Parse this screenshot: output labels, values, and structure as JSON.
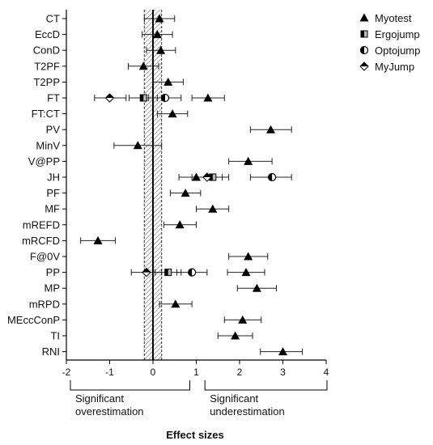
{
  "chart_data": {
    "type": "scatter",
    "subtype": "forest-plot",
    "xlabel": "Effect sizes",
    "xlim": [
      -2,
      4
    ],
    "xticks": [
      -2,
      -1,
      0,
      1,
      2,
      3,
      4
    ],
    "reference_line": 0,
    "equivalence_band": [
      -0.2,
      0.2
    ],
    "categories": [
      "CT",
      "EccD",
      "ConD",
      "T2PF",
      "T2PP",
      "FT",
      "FT:CT",
      "PV",
      "MinV",
      "V@PP",
      "JH",
      "PF",
      "MF",
      "mREFD",
      "mRCFD",
      "F@0V",
      "PP",
      "MP",
      "mRPD",
      "MEccConP",
      "TI",
      "RNI"
    ],
    "annotations": {
      "left": [
        "Significant",
        "overestimation"
      ],
      "right": [
        "Significant",
        "underestimation"
      ]
    },
    "series": [
      {
        "name": "Myotest",
        "marker": "triangle",
        "points": [
          {
            "category": "CT",
            "x": 0.15,
            "lo": -0.2,
            "hi": 0.5
          },
          {
            "category": "EccD",
            "x": 0.1,
            "lo": -0.25,
            "hi": 0.45
          },
          {
            "category": "ConD",
            "x": 0.18,
            "lo": -0.15,
            "hi": 0.52
          },
          {
            "category": "T2PF",
            "x": -0.22,
            "lo": -0.57,
            "hi": 0.13
          },
          {
            "category": "T2PP",
            "x": 0.35,
            "lo": 0.0,
            "hi": 0.7
          },
          {
            "category": "FT",
            "x": 1.27,
            "lo": 0.9,
            "hi": 1.65
          },
          {
            "category": "FT:CT",
            "x": 0.45,
            "lo": 0.1,
            "hi": 0.8
          },
          {
            "category": "PV",
            "x": 2.72,
            "lo": 2.25,
            "hi": 3.2
          },
          {
            "category": "MinV",
            "x": -0.35,
            "lo": -0.9,
            "hi": 0.2
          },
          {
            "category": "V@PP",
            "x": 2.2,
            "lo": 1.75,
            "hi": 2.75
          },
          {
            "category": "JH",
            "x": 1.0,
            "lo": 0.6,
            "hi": 1.4
          },
          {
            "category": "PF",
            "x": 0.75,
            "lo": 0.4,
            "hi": 1.1
          },
          {
            "category": "MF",
            "x": 1.38,
            "lo": 1.0,
            "hi": 1.75
          },
          {
            "category": "mREFD",
            "x": 0.62,
            "lo": 0.25,
            "hi": 1.0
          },
          {
            "category": "mRCFD",
            "x": -1.27,
            "lo": -1.67,
            "hi": -0.87
          },
          {
            "category": "F@0V",
            "x": 2.2,
            "lo": 1.75,
            "hi": 2.65
          },
          {
            "category": "PP",
            "x": 2.15,
            "lo": 1.72,
            "hi": 2.58
          },
          {
            "category": "MP",
            "x": 2.4,
            "lo": 1.95,
            "hi": 2.85
          },
          {
            "category": "mRPD",
            "x": 0.52,
            "lo": 0.15,
            "hi": 0.9
          },
          {
            "category": "MEccConP",
            "x": 2.07,
            "lo": 1.65,
            "hi": 2.5
          },
          {
            "category": "TI",
            "x": 1.9,
            "lo": 1.5,
            "hi": 2.3
          },
          {
            "category": "RNI",
            "x": 3.0,
            "lo": 2.48,
            "hi": 3.45
          }
        ]
      },
      {
        "name": "Ergojump",
        "marker": "half-square",
        "points": [
          {
            "category": "FT",
            "x": -0.22,
            "lo": -0.55,
            "hi": 0.1
          },
          {
            "category": "JH",
            "x": 1.38,
            "lo": 1.0,
            "hi": 1.75
          },
          {
            "category": "PP",
            "x": 0.35,
            "lo": 0.05,
            "hi": 0.65
          }
        ]
      },
      {
        "name": "Optojump",
        "marker": "half-circle",
        "points": [
          {
            "category": "FT",
            "x": 0.28,
            "lo": -0.1,
            "hi": 0.65
          },
          {
            "category": "JH",
            "x": 2.75,
            "lo": 2.25,
            "hi": 3.2
          },
          {
            "category": "PP",
            "x": 0.9,
            "lo": 0.55,
            "hi": 1.25
          }
        ]
      },
      {
        "name": "MyJump",
        "marker": "half-diamond",
        "points": [
          {
            "category": "FT",
            "x": -1.0,
            "lo": -1.35,
            "hi": -0.62
          },
          {
            "category": "JH",
            "x": 1.25,
            "lo": 0.9,
            "hi": 1.6
          },
          {
            "category": "PP",
            "x": -0.15,
            "lo": -0.5,
            "hi": 0.2
          }
        ]
      }
    ]
  }
}
